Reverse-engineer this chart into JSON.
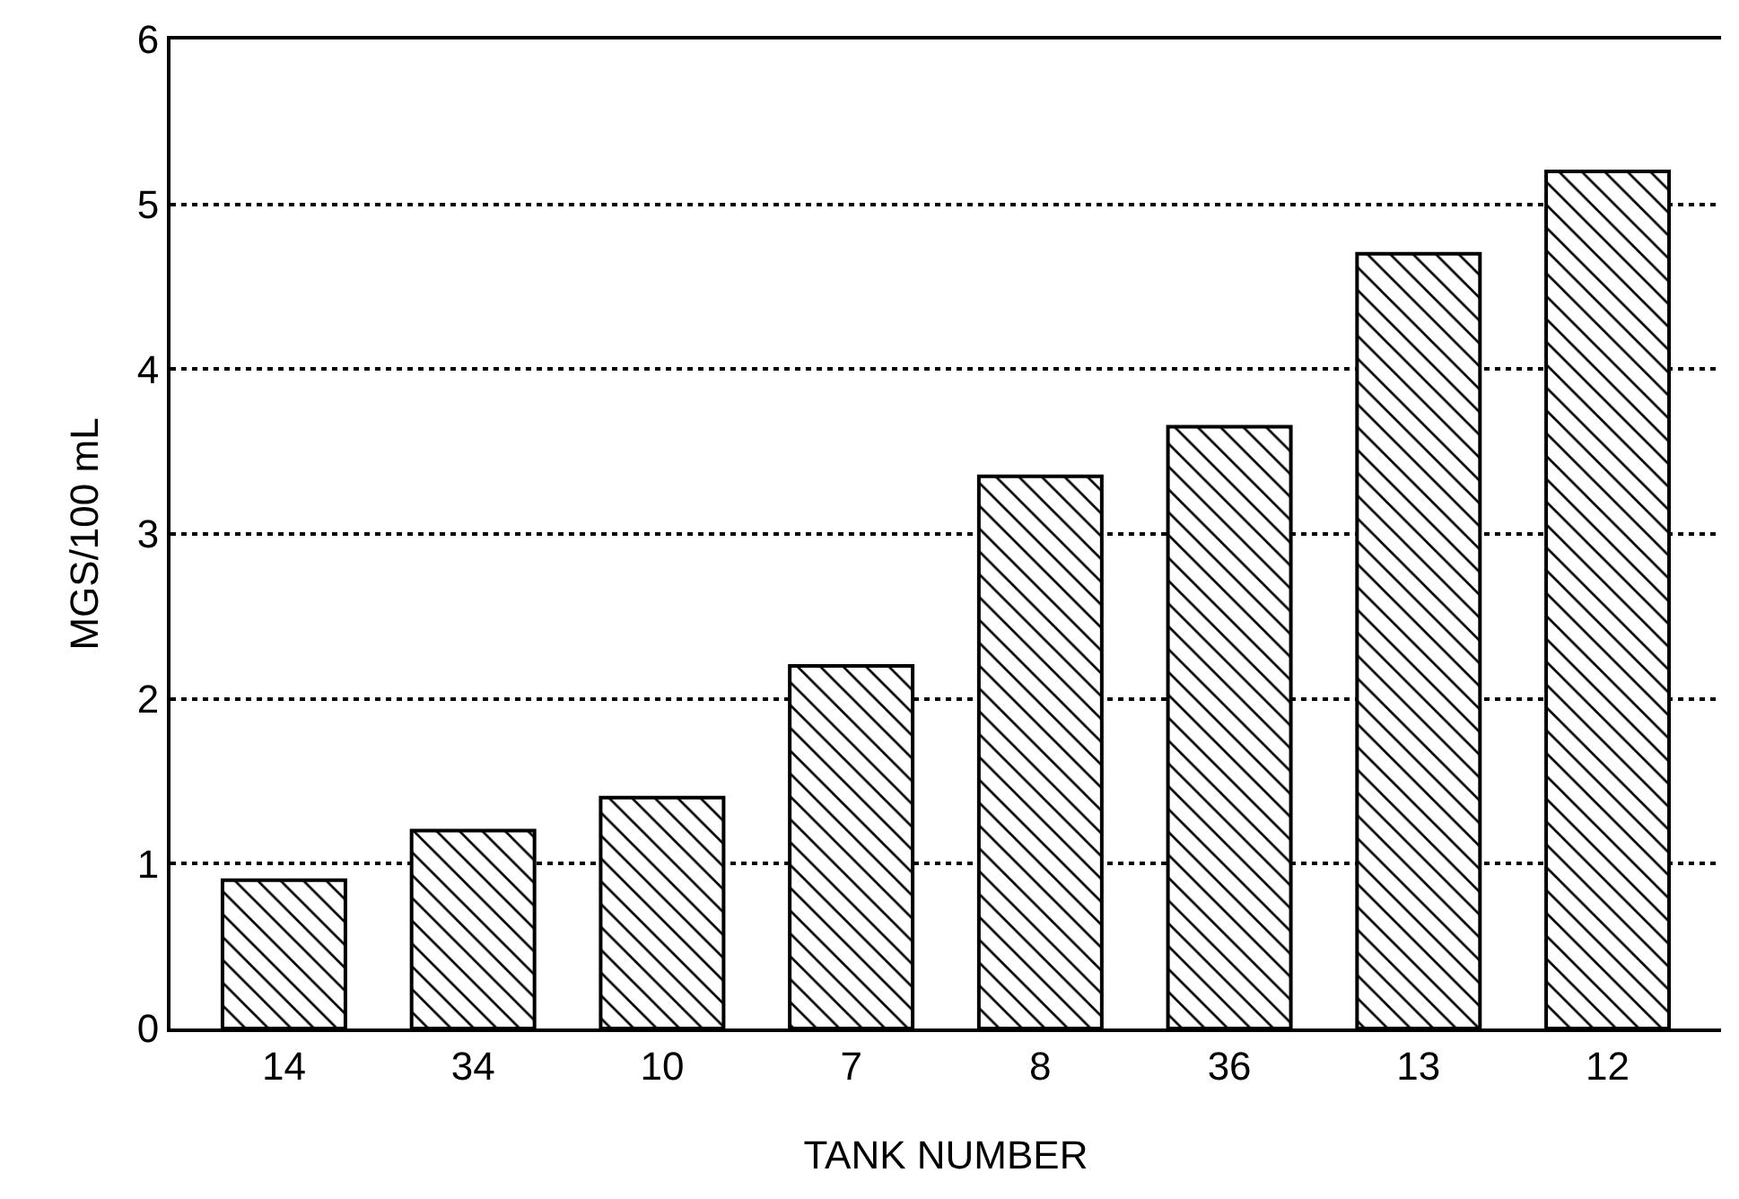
{
  "chart_data": {
    "type": "bar",
    "xlabel": "TANK NUMBER",
    "ylabel": "MGS/100 mL",
    "categories": [
      "14",
      "34",
      "10",
      "7",
      "8",
      "36",
      "13",
      "12"
    ],
    "values": [
      0.9,
      1.2,
      1.4,
      2.2,
      3.35,
      3.65,
      4.7,
      5.2
    ],
    "color": "#000000",
    "ylim": [
      0,
      6
    ],
    "yticks": [
      0,
      1,
      2,
      3,
      4,
      5,
      6
    ],
    "grid": "y"
  }
}
